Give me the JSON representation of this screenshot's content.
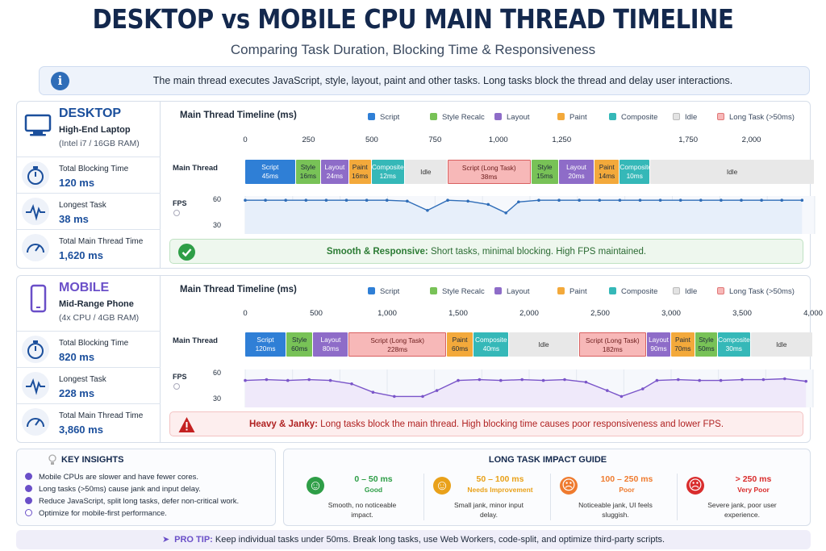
{
  "title": "DESKTOP vs MOBILE CPU MAIN THREAD TIMELINE",
  "subtitle": "Comparing Task Duration, Blocking Time & Responsiveness",
  "info": "The main thread executes JavaScript, style, layout, paint and other tasks. Long tasks block the thread and delay user interactions.",
  "legend": [
    {
      "label": "Script",
      "color": "#2f7fd6"
    },
    {
      "label": "Style Recalc",
      "color": "#78c257"
    },
    {
      "label": "Layout",
      "color": "#8e6cc8"
    },
    {
      "label": "Paint",
      "color": "#f3a93b"
    },
    {
      "label": "Composite",
      "color": "#35b8b8"
    },
    {
      "label": "Idle",
      "color": "#e3e3e3"
    },
    {
      "label": "Long Task (>50ms)",
      "color": "#f7b8b8"
    }
  ],
  "desktop": {
    "name": "DESKTOP",
    "device": "High-End Laptop",
    "spec": "(Intel i7 / 16GB RAM)",
    "metrics": [
      {
        "label": "Total Blocking Time",
        "value": "120 ms",
        "icon": "stopwatch-icon"
      },
      {
        "label": "Longest Task",
        "value": "38 ms",
        "icon": "pulse-icon"
      },
      {
        "label": "Total Main Thread Time",
        "value": "1,620 ms",
        "icon": "gauge-icon"
      }
    ],
    "status_strong": "Smooth & Responsive:",
    "status_text": " Short tasks, minimal blocking. High FPS maintained."
  },
  "mobile": {
    "name": "MOBILE",
    "device": "Mid-Range Phone",
    "spec": "(4x CPU / 4GB RAM)",
    "metrics": [
      {
        "label": "Total Blocking Time",
        "value": "820 ms",
        "icon": "stopwatch-icon"
      },
      {
        "label": "Longest Task",
        "value": "228 ms",
        "icon": "pulse-icon"
      },
      {
        "label": "Total Main Thread Time",
        "value": "3,860 ms",
        "icon": "gauge-icon"
      }
    ],
    "status_strong": "Heavy & Janky:",
    "status_text": " Long tasks block the main thread. High blocking time causes poor responsiveness and lower FPS."
  },
  "chart_data": [
    {
      "type": "timeline",
      "title": "Main Thread Timeline (ms)",
      "row_label": "Main Thread",
      "xlim": [
        0,
        2250
      ],
      "ticks": [
        "0",
        "250",
        "500",
        "750",
        "1,000",
        "1,250",
        "1,750",
        "2,000"
      ],
      "tick_values": [
        0,
        250,
        500,
        750,
        1000,
        1250,
        1750,
        2000
      ],
      "tasks": [
        {
          "name": "Script",
          "dur": "45ms",
          "kind": "script",
          "start": 0,
          "end": 200
        },
        {
          "name": "Style",
          "dur": "16ms",
          "kind": "style",
          "start": 200,
          "end": 300
        },
        {
          "name": "Layout",
          "dur": "24ms",
          "kind": "layout",
          "start": 300,
          "end": 410
        },
        {
          "name": "Paint",
          "dur": "16ms",
          "kind": "paint",
          "start": 410,
          "end": 500
        },
        {
          "name": "Composite",
          "dur": "12ms",
          "kind": "composite",
          "start": 500,
          "end": 630
        },
        {
          "name": "Idle",
          "dur": "",
          "kind": "idle",
          "start": 630,
          "end": 800
        },
        {
          "name": "Script (Long Task)",
          "dur": "38ms",
          "kind": "long",
          "start": 800,
          "end": 1130
        },
        {
          "name": "Style",
          "dur": "15ms",
          "kind": "style",
          "start": 1130,
          "end": 1240
        },
        {
          "name": "Layout",
          "dur": "20ms",
          "kind": "layout",
          "start": 1240,
          "end": 1380
        },
        {
          "name": "Paint",
          "dur": "14ms",
          "kind": "paint",
          "start": 1380,
          "end": 1480
        },
        {
          "name": "Composite",
          "dur": "10ms",
          "kind": "composite",
          "start": 1480,
          "end": 1600
        },
        {
          "name": "Idle",
          "dur": "",
          "kind": "idle",
          "start": 1600,
          "end": 2250
        }
      ],
      "fps_label": "FPS",
      "fps_ticks": [
        "60",
        "30"
      ],
      "fps_ylim": [
        20,
        65
      ],
      "fps": [
        [
          0,
          60
        ],
        [
          80,
          60
        ],
        [
          160,
          60
        ],
        [
          240,
          60
        ],
        [
          320,
          60
        ],
        [
          400,
          60
        ],
        [
          480,
          60
        ],
        [
          560,
          60
        ],
        [
          640,
          59
        ],
        [
          720,
          48
        ],
        [
          800,
          60
        ],
        [
          880,
          59
        ],
        [
          960,
          55
        ],
        [
          1030,
          45
        ],
        [
          1080,
          58
        ],
        [
          1160,
          60
        ],
        [
          1240,
          60
        ],
        [
          1320,
          60
        ],
        [
          1400,
          60
        ],
        [
          1480,
          60
        ],
        [
          1560,
          60
        ],
        [
          1640,
          60
        ],
        [
          1720,
          60
        ],
        [
          1800,
          60
        ],
        [
          1880,
          60
        ],
        [
          1960,
          60
        ],
        [
          2040,
          60
        ],
        [
          2120,
          60
        ],
        [
          2200,
          60
        ]
      ]
    },
    {
      "type": "timeline",
      "title": "Main Thread Timeline (ms)",
      "row_label": "Main Thread",
      "xlim": [
        0,
        4000
      ],
      "ticks": [
        "0",
        "500",
        "1,000",
        "1,500",
        "2,000",
        "2,500",
        "3,000",
        "3,500",
        "4,000"
      ],
      "tick_values": [
        0,
        500,
        1000,
        1500,
        2000,
        2500,
        3000,
        3500,
        4000
      ],
      "tasks": [
        {
          "name": "Script",
          "dur": "120ms",
          "kind": "script",
          "start": 0,
          "end": 290
        },
        {
          "name": "Style",
          "dur": "60ms",
          "kind": "style",
          "start": 290,
          "end": 480
        },
        {
          "name": "Layout",
          "dur": "80ms",
          "kind": "layout",
          "start": 480,
          "end": 730
        },
        {
          "name": "Script (Long Task)",
          "dur": "228ms",
          "kind": "long",
          "start": 730,
          "end": 1420
        },
        {
          "name": "Paint",
          "dur": "60ms",
          "kind": "paint",
          "start": 1420,
          "end": 1610
        },
        {
          "name": "Composite",
          "dur": "40ms",
          "kind": "composite",
          "start": 1610,
          "end": 1860
        },
        {
          "name": "Idle",
          "dur": "",
          "kind": "idle",
          "start": 1860,
          "end": 2350
        },
        {
          "name": "Script (Long Task)",
          "dur": "182ms",
          "kind": "long",
          "start": 2350,
          "end": 2830
        },
        {
          "name": "Layout",
          "dur": "90ms",
          "kind": "layout",
          "start": 2830,
          "end": 3000
        },
        {
          "name": "Paint",
          "dur": "70ms",
          "kind": "paint",
          "start": 3000,
          "end": 3170
        },
        {
          "name": "Style",
          "dur": "50ms",
          "kind": "style",
          "start": 3170,
          "end": 3330
        },
        {
          "name": "Composite",
          "dur": "30ms",
          "kind": "composite",
          "start": 3330,
          "end": 3560
        },
        {
          "name": "Idle",
          "dur": "",
          "kind": "idle",
          "start": 3560,
          "end": 4000
        }
      ],
      "fps_label": "FPS",
      "fps_ticks": [
        "60",
        "30"
      ],
      "fps_ylim": [
        20,
        65
      ],
      "fps": [
        [
          0,
          52
        ],
        [
          150,
          53
        ],
        [
          300,
          52
        ],
        [
          450,
          53
        ],
        [
          600,
          52
        ],
        [
          750,
          48
        ],
        [
          900,
          38
        ],
        [
          1050,
          33
        ],
        [
          1250,
          33
        ],
        [
          1350,
          40
        ],
        [
          1500,
          52
        ],
        [
          1650,
          53
        ],
        [
          1800,
          52
        ],
        [
          1950,
          53
        ],
        [
          2100,
          52
        ],
        [
          2250,
          53
        ],
        [
          2400,
          50
        ],
        [
          2550,
          40
        ],
        [
          2650,
          33
        ],
        [
          2800,
          42
        ],
        [
          2900,
          52
        ],
        [
          3050,
          53
        ],
        [
          3200,
          52
        ],
        [
          3350,
          52
        ],
        [
          3500,
          53
        ],
        [
          3650,
          53
        ],
        [
          3800,
          54
        ],
        [
          3950,
          51
        ]
      ]
    }
  ],
  "insights": {
    "title": "KEY INSIGHTS",
    "items": [
      "Mobile CPUs are slower and have fewer cores.",
      "Long tasks (>50ms) cause jank and input delay.",
      "Reduce JavaScript, split long tasks, defer non-critical work.",
      "Optimize for mobile-first performance."
    ]
  },
  "guide": {
    "title": "LONG TASK IMPACT GUIDE",
    "cols": [
      {
        "range": "0 – 50 ms",
        "label": "Good",
        "desc1": "Smooth, no noticeable",
        "desc2": "impact.",
        "color": "#2e9e47"
      },
      {
        "range": "50 – 100 ms",
        "label": "Needs Improvement",
        "desc1": "Small jank, minor input",
        "desc2": "delay.",
        "color": "#e9a11a"
      },
      {
        "range": "100 – 250 ms",
        "label": "Poor",
        "desc1": "Noticeable jank, UI feels",
        "desc2": "sluggish.",
        "color": "#ef7b2f"
      },
      {
        "range": "> 250 ms",
        "label": "Very Poor",
        "desc1": "Severe jank, poor user",
        "desc2": "experience.",
        "color": "#d92d2d"
      }
    ]
  },
  "protip": {
    "strong": "PRO TIP:",
    "text": " Keep individual tasks under 50ms. Break long tasks, use Web Workers, code-split, and optimize third-party scripts."
  }
}
